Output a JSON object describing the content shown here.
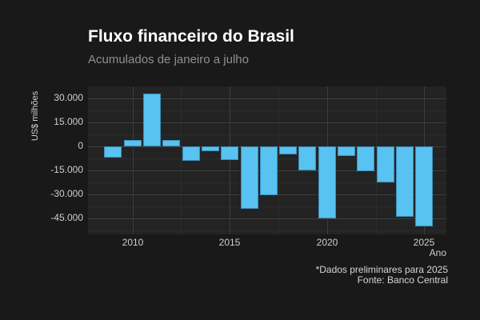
{
  "chart_data": {
    "type": "bar",
    "title": "Fluxo financeiro do Brasil",
    "subtitle": "Acumulados de janeiro a julho",
    "xlabel": "Ano",
    "ylabel": "US$ milhões",
    "caption": [
      "*Dados preliminares para 2025",
      "Fonte: Banco Central"
    ],
    "x": [
      2009,
      2010,
      2011,
      2012,
      2013,
      2014,
      2015,
      2016,
      2017,
      2018,
      2019,
      2020,
      2021,
      2022,
      2023,
      2024,
      2025
    ],
    "values": [
      -7200,
      3900,
      33200,
      4000,
      -8900,
      -3100,
      -8300,
      -39000,
      -30500,
      -5000,
      -14800,
      -45200,
      -5900,
      -15300,
      -22300,
      -43900,
      -49900
    ],
    "xlim": [
      2007.71,
      2026.14
    ],
    "ylim": [
      -55000,
      37600
    ],
    "y_major_ticks": [
      30000,
      15000,
      0,
      -15000,
      -30000,
      -45000
    ],
    "y_tick_labels": [
      "30.000",
      "15.000",
      "0",
      "-15.000",
      "-30.000",
      "-45.000"
    ],
    "y_minor_ticks": [
      22500,
      7500,
      -7500,
      -22500,
      -37500,
      -52500
    ],
    "x_major_ticks": [
      2010,
      2015,
      2020,
      2025
    ],
    "x_tick_labels": [
      "2010",
      "2015",
      "2020",
      "2025"
    ],
    "x_minor_ticks": [
      2012.5,
      2017.5,
      2022.5
    ],
    "grid": true,
    "legend": false,
    "bar_color": "#58c2f0",
    "bar_border_color": "#3e8fb8",
    "theme": {
      "background": "#191919",
      "panel": "#232323",
      "grid_major": "#3d3d3d",
      "grid_minor": "#2c2c2c",
      "title_color": "#ffffff",
      "subtitle_color": "#8f8f8f",
      "axis_text_color": "#cfcfcf",
      "caption_color": "#d6d6d6"
    }
  }
}
